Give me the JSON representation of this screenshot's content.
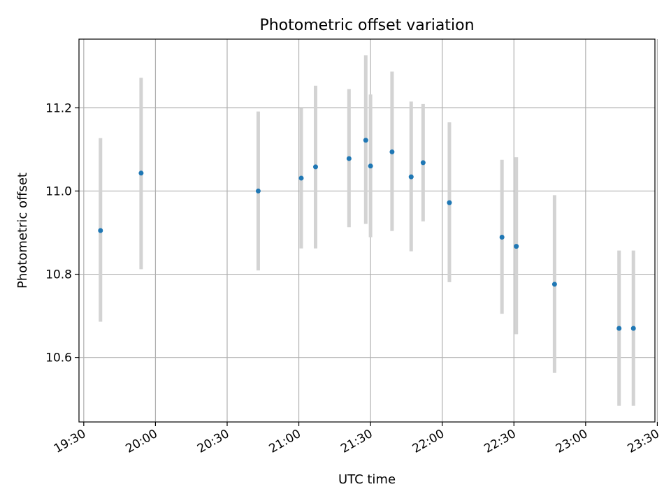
{
  "chart_data": {
    "type": "scatter",
    "title": "Photometric offset variation",
    "xlabel": "UTC time",
    "ylabel": "Photometric offset",
    "xlim": [
      "19:28",
      "23:29"
    ],
    "ylim": [
      10.445,
      11.365
    ],
    "x_ticks": [
      "19:30",
      "20:00",
      "20:30",
      "21:00",
      "21:30",
      "22:00",
      "22:30",
      "23:00",
      "23:30"
    ],
    "y_ticks": [
      "10.6",
      "10.8",
      "11.0",
      "11.2"
    ],
    "grid": true,
    "marker_color": "#1f77b4",
    "errorbar_color": "#d3d3d3",
    "points": [
      {
        "t": "19:37",
        "y": 10.905,
        "low": 10.686,
        "high": 11.127
      },
      {
        "t": "19:54",
        "y": 11.043,
        "low": 10.812,
        "high": 11.272
      },
      {
        "t": "20:43",
        "y": 11.0,
        "low": 10.809,
        "high": 11.191
      },
      {
        "t": "21:01",
        "y": 11.031,
        "low": 10.862,
        "high": 11.199
      },
      {
        "t": "21:07",
        "y": 11.058,
        "low": 10.862,
        "high": 11.253
      },
      {
        "t": "21:21",
        "y": 11.078,
        "low": 10.913,
        "high": 11.245
      },
      {
        "t": "21:28",
        "y": 11.122,
        "low": 10.921,
        "high": 11.326
      },
      {
        "t": "21:30",
        "y": 11.06,
        "low": 10.889,
        "high": 11.232
      },
      {
        "t": "21:39",
        "y": 11.094,
        "low": 10.904,
        "high": 11.287
      },
      {
        "t": "21:47",
        "y": 11.034,
        "low": 10.855,
        "high": 11.215
      },
      {
        "t": "21:52",
        "y": 11.068,
        "low": 10.927,
        "high": 11.209
      },
      {
        "t": "22:03",
        "y": 10.972,
        "low": 10.781,
        "high": 11.165
      },
      {
        "t": "22:25",
        "y": 10.889,
        "low": 10.705,
        "high": 11.075
      },
      {
        "t": "22:31",
        "y": 10.867,
        "low": 10.656,
        "high": 11.081
      },
      {
        "t": "22:47",
        "y": 10.776,
        "low": 10.563,
        "high": 10.99
      },
      {
        "t": "23:14",
        "y": 10.67,
        "low": 10.484,
        "high": 10.857
      },
      {
        "t": "23:20",
        "y": 10.67,
        "low": 10.484,
        "high": 10.857
      }
    ]
  }
}
